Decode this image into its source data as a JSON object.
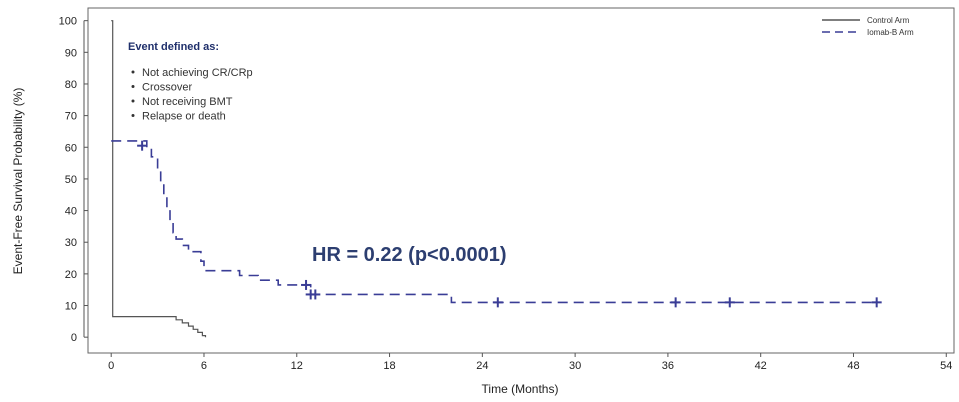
{
  "chart_data": {
    "type": "line",
    "xlabel": "Time (Months)",
    "ylabel": "Event-Free Survival Probability (%)",
    "xlim": [
      -1.5,
      54.5
    ],
    "ylim": [
      -5,
      104
    ],
    "x_ticks": [
      "0",
      "6",
      "12",
      "18",
      "24",
      "30",
      "36",
      "42",
      "48",
      "54"
    ],
    "y_ticks": [
      "0",
      "10",
      "20",
      "30",
      "40",
      "50",
      "60",
      "70",
      "80",
      "90",
      "100"
    ],
    "grid": false,
    "legend_position": "top-right",
    "series": [
      {
        "name": "Control Arm",
        "color": "#555555",
        "dash": "solid",
        "steps": [
          [
            0,
            100
          ],
          [
            0.1,
            100
          ],
          [
            0.1,
            6.5
          ],
          [
            4.2,
            6.5
          ],
          [
            4.2,
            5.5
          ],
          [
            4.6,
            5.5
          ],
          [
            4.6,
            4.5
          ],
          [
            5.0,
            4.5
          ],
          [
            5.0,
            3.5
          ],
          [
            5.3,
            3.5
          ],
          [
            5.3,
            2.5
          ],
          [
            5.6,
            2.5
          ],
          [
            5.6,
            1.5
          ],
          [
            5.9,
            1.5
          ],
          [
            5.9,
            0.5
          ],
          [
            6.1,
            0.5
          ],
          [
            6.1,
            0
          ]
        ],
        "censored": []
      },
      {
        "name": "Iomab-B Arm",
        "color": "#3a3d96",
        "dash": "dashed",
        "steps": [
          [
            0,
            62
          ],
          [
            2.3,
            62
          ],
          [
            2.3,
            60
          ],
          [
            2.6,
            60
          ],
          [
            2.6,
            57
          ],
          [
            3.0,
            57
          ],
          [
            3.0,
            53
          ],
          [
            3.2,
            53
          ],
          [
            3.2,
            49
          ],
          [
            3.4,
            49
          ],
          [
            3.4,
            45
          ],
          [
            3.6,
            45
          ],
          [
            3.6,
            41
          ],
          [
            3.8,
            41
          ],
          [
            3.8,
            37
          ],
          [
            4.0,
            37
          ],
          [
            4.0,
            33
          ],
          [
            4.2,
            33
          ],
          [
            4.2,
            31
          ],
          [
            4.6,
            31
          ],
          [
            4.6,
            29
          ],
          [
            5.0,
            29
          ],
          [
            5.0,
            27
          ],
          [
            5.8,
            27
          ],
          [
            5.8,
            24
          ],
          [
            6.0,
            24
          ],
          [
            6.0,
            21
          ],
          [
            8.3,
            21
          ],
          [
            8.3,
            19.5
          ],
          [
            9.5,
            19.5
          ],
          [
            9.5,
            18
          ],
          [
            10.8,
            18
          ],
          [
            10.8,
            16.5
          ],
          [
            12.9,
            16.5
          ],
          [
            12.9,
            13.5
          ],
          [
            22.0,
            13.5
          ],
          [
            22.0,
            11
          ],
          [
            49.5,
            11
          ]
        ],
        "censored": [
          [
            2,
            60.5
          ],
          [
            12.6,
            16.5
          ],
          [
            12.9,
            13.5
          ],
          [
            13.2,
            13.5
          ],
          [
            25.0,
            11
          ],
          [
            36.5,
            11
          ],
          [
            40.0,
            11
          ],
          [
            49.5,
            11
          ]
        ]
      }
    ],
    "annotations": {
      "event_title": "Event defined as:",
      "event_items": [
        "Not achieving CR/CRp",
        "Crossover",
        "Not receiving BMT",
        "Relapse or death"
      ],
      "hr_text": "HR = 0.22 (p<0.0001)"
    }
  }
}
